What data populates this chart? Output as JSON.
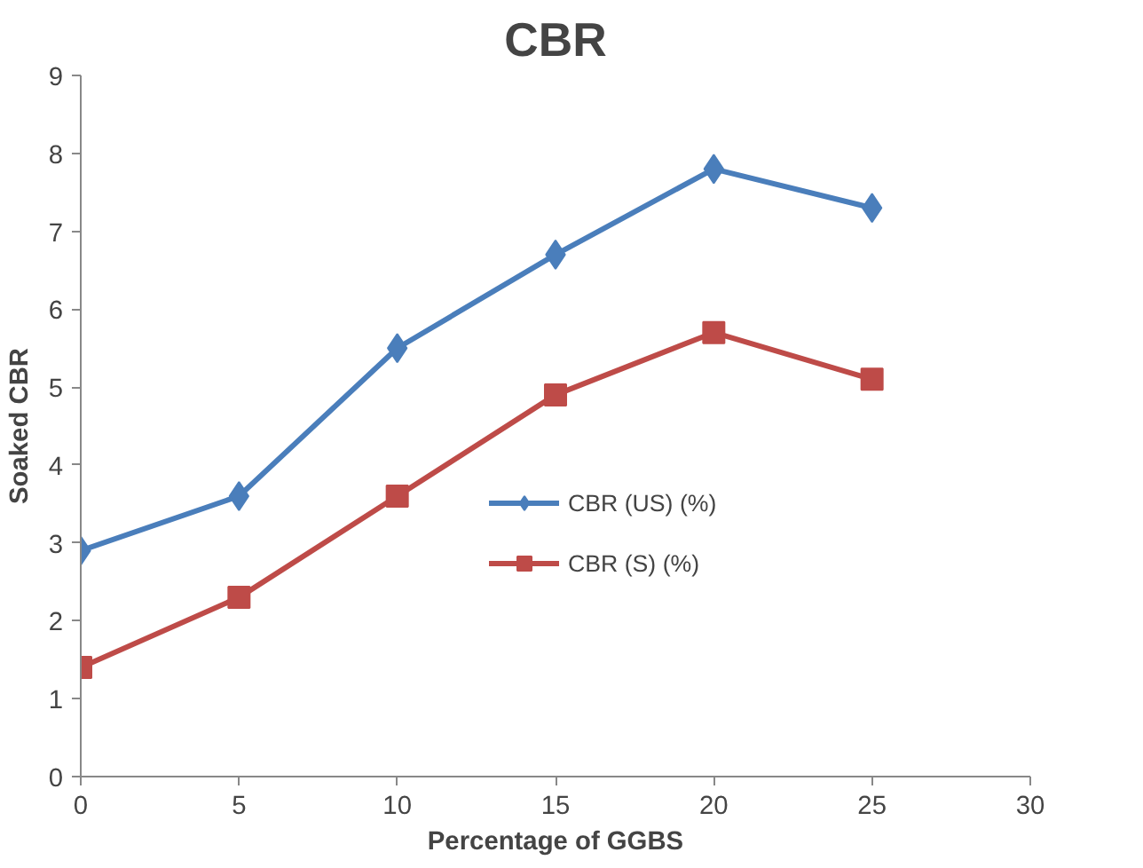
{
  "chart_data": {
    "type": "line",
    "title": "CBR",
    "xlabel": "Percentage of GGBS",
    "ylabel": "Soaked CBR",
    "x": [
      0,
      5,
      10,
      15,
      20,
      25
    ],
    "series": [
      {
        "name": "CBR (US) (%)",
        "color": "#4a7ebb",
        "marker": "diamond",
        "values": [
          2.9,
          3.6,
          5.5,
          6.7,
          7.8,
          7.3
        ]
      },
      {
        "name": "CBR (S) (%)",
        "color": "#be4b48",
        "marker": "square",
        "values": [
          1.4,
          2.3,
          3.6,
          4.9,
          5.7,
          5.1
        ]
      }
    ],
    "xlim": [
      0,
      30
    ],
    "xticks": [
      0,
      5,
      10,
      15,
      20,
      25,
      30
    ],
    "ylim": [
      0,
      9
    ],
    "yticks": [
      0,
      1,
      2,
      3,
      4,
      5,
      6,
      7,
      8,
      9
    ],
    "grid": false,
    "legend": "right",
    "line_style": "solid"
  }
}
